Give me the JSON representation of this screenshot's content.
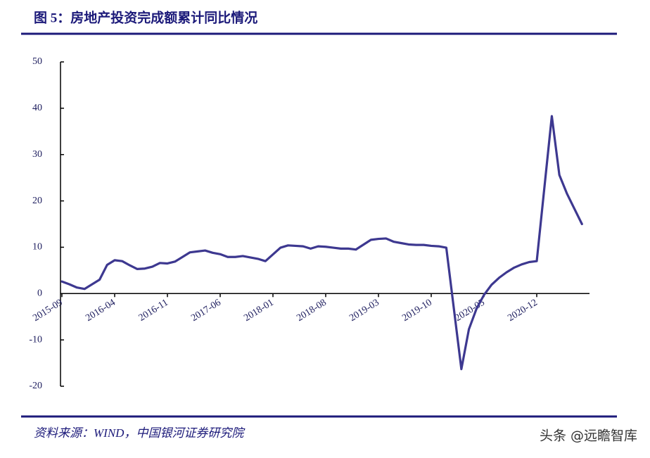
{
  "chart_data": {
    "type": "line",
    "title": "图 5：房地产投资完成额累计同比情况",
    "x": [
      "2015-09",
      "2015-10",
      "2015-11",
      "2015-12",
      "2016-02",
      "2016-03",
      "2016-04",
      "2016-05",
      "2016-06",
      "2016-07",
      "2016-08",
      "2016-09",
      "2016-10",
      "2016-11",
      "2016-12",
      "2017-02",
      "2017-03",
      "2017-04",
      "2017-05",
      "2017-06",
      "2017-07",
      "2017-08",
      "2017-09",
      "2017-10",
      "2017-11",
      "2017-12",
      "2018-02",
      "2018-03",
      "2018-04",
      "2018-05",
      "2018-06",
      "2018-07",
      "2018-08",
      "2018-09",
      "2018-10",
      "2018-11",
      "2018-12",
      "2019-02",
      "2019-03",
      "2019-04",
      "2019-05",
      "2019-06",
      "2019-07",
      "2019-08",
      "2019-09",
      "2019-10",
      "2019-11",
      "2019-12",
      "2020-02",
      "2020-03",
      "2020-04",
      "2020-05",
      "2020-06",
      "2020-07",
      "2020-08",
      "2020-09",
      "2020-10",
      "2020-11",
      "2020-12",
      "2021-02",
      "2021-03",
      "2021-04",
      "2021-05",
      "2021-06"
    ],
    "values": [
      2.6,
      2.0,
      1.3,
      1.0,
      3.0,
      6.2,
      7.2,
      7.0,
      6.1,
      5.3,
      5.4,
      5.8,
      6.6,
      6.5,
      6.9,
      8.9,
      9.1,
      9.3,
      8.8,
      8.5,
      7.9,
      7.9,
      8.1,
      7.8,
      7.5,
      7.0,
      9.9,
      10.4,
      10.3,
      10.2,
      9.7,
      10.2,
      10.1,
      9.9,
      9.7,
      9.7,
      9.5,
      11.6,
      11.8,
      11.9,
      11.2,
      10.9,
      10.6,
      10.5,
      10.5,
      10.3,
      10.2,
      9.9,
      -16.3,
      -7.7,
      -3.3,
      -0.3,
      1.9,
      3.4,
      4.6,
      5.6,
      6.3,
      6.8,
      7.0,
      38.3,
      25.6,
      21.6,
      18.3,
      15.0
    ],
    "color": "#3d3890",
    "xlim": [
      "2015-09",
      "2021-07"
    ],
    "xticks": [
      "2015-09",
      "2016-04",
      "2016-11",
      "2017-06",
      "2018-01",
      "2018-08",
      "2019-03",
      "2019-10",
      "2020-05",
      "2020-12"
    ],
    "ylim": [
      -20,
      50
    ],
    "yticks": [
      50,
      40,
      30,
      20,
      10,
      0,
      -10,
      -20
    ],
    "grid": false
  },
  "source": "资料来源：WIND，中国银河证券研究院",
  "watermark": "头条 @远瞻智库"
}
